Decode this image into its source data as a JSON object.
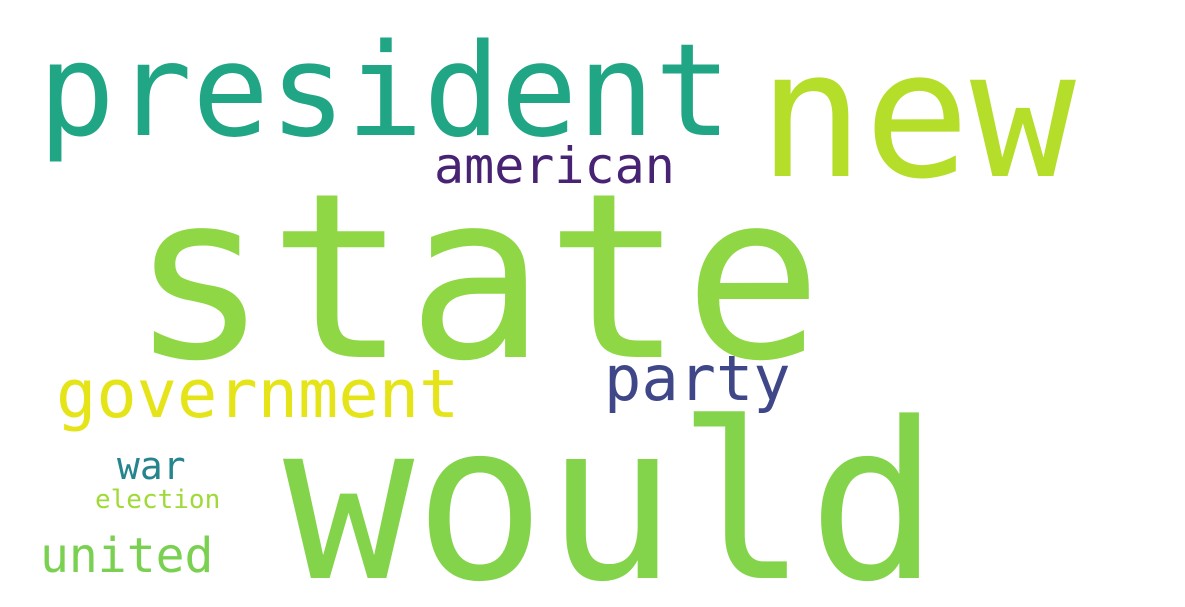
{
  "background": "#ffffff",
  "words": [
    {
      "text": "state",
      "color": "#8fd744"
    },
    {
      "text": "would",
      "color": "#84d44b"
    },
    {
      "text": "new",
      "color": "#b5de2b"
    },
    {
      "text": "president",
      "color": "#21a685"
    },
    {
      "text": "government",
      "color": "#e5e419"
    },
    {
      "text": "american",
      "color": "#482374"
    },
    {
      "text": "party",
      "color": "#3f4788"
    },
    {
      "text": "united",
      "color": "#7ad151"
    },
    {
      "text": "war",
      "color": "#25858e"
    },
    {
      "text": "election",
      "color": "#a0da39"
    }
  ]
}
